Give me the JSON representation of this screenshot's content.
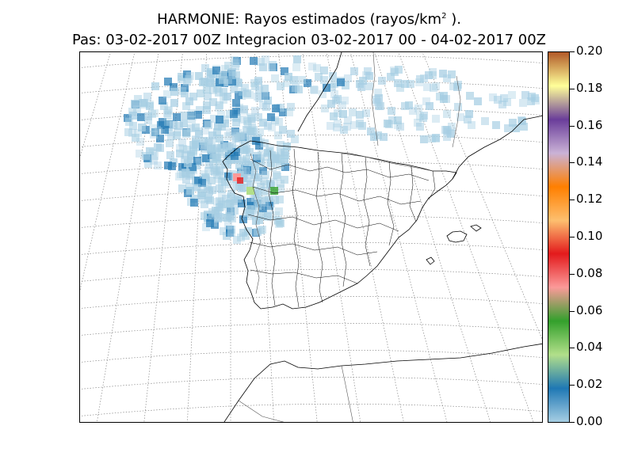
{
  "header": {
    "title_prefix": "HARMONIE: Rayos estimados  (rayos/km",
    "title_exp": "2",
    "title_suffix": " ).",
    "subtitle": "Pas: 03-02-2017 00Z Integracion 03-02-2017 00 - 04-02-2017 00Z"
  },
  "map": {
    "projection": "lambert-conformal",
    "region": "Iberian Peninsula and Bay of Biscay",
    "graticule": "dotted",
    "lightning_cells_region": "NW Iberia / Galicia and Atlantic north of Spain, Bay of Biscay",
    "max_value_location": "Galicia (Rias Baixas)"
  },
  "colorbar": {
    "min": 0.0,
    "max": 0.2,
    "ticks": [
      "0.00",
      "0.02",
      "0.04",
      "0.06",
      "0.08",
      "0.10",
      "0.12",
      "0.14",
      "0.16",
      "0.18",
      "0.20"
    ],
    "colors": [
      "#a6cee3",
      "#1f78b4",
      "#b2df8a",
      "#33a02c",
      "#fb9a99",
      "#e31a1c",
      "#fdbf6f",
      "#ff7f00",
      "#cab2d6",
      "#6a3d9a",
      "#ffff99",
      "#b15928"
    ]
  }
}
